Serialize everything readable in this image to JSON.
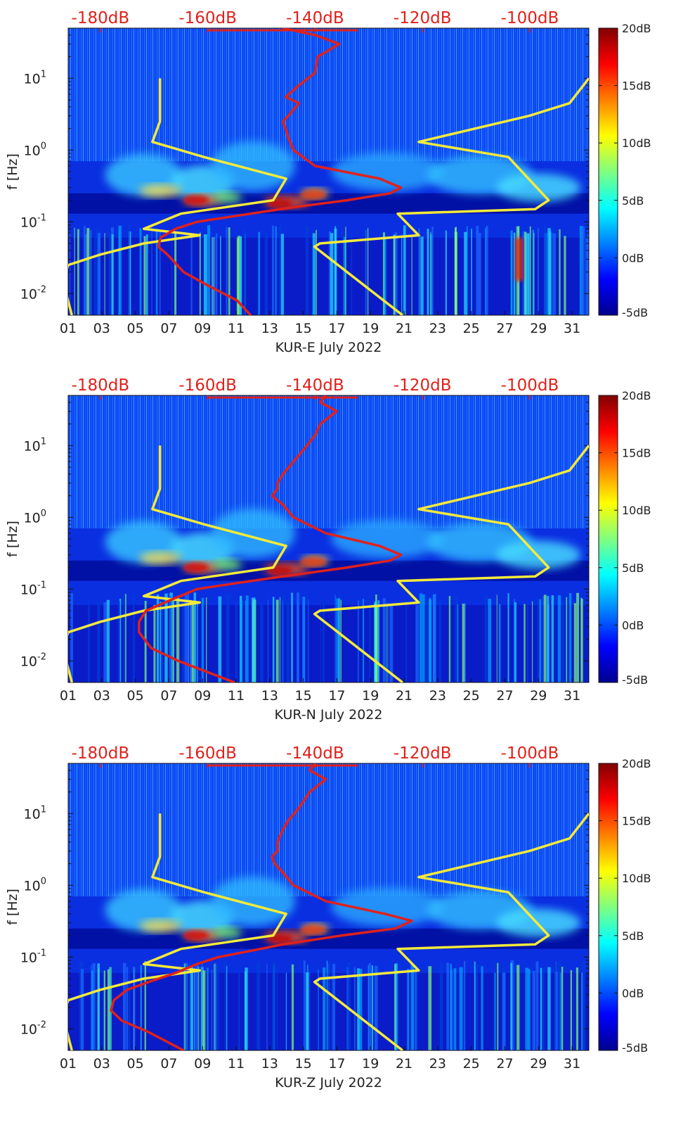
{
  "chart_data": {
    "type": "heatmap",
    "title": "",
    "xlabel_suffix": "July 2022",
    "ylabel": "f [Hz]",
    "x_range_days": [
      1,
      32
    ],
    "x_ticks": [
      "01",
      "03",
      "05",
      "07",
      "09",
      "11",
      "13",
      "15",
      "17",
      "19",
      "21",
      "23",
      "25",
      "27",
      "29",
      "31"
    ],
    "y_range_hz": [
      0.005,
      50
    ],
    "y_scale": "log",
    "y_ticks": [
      {
        "value": 0.01,
        "base": "10",
        "exp": "-2"
      },
      {
        "value": 0.1,
        "base": "10",
        "exp": "-1"
      },
      {
        "value": 1,
        "base": "10",
        "exp": "0"
      },
      {
        "value": 10,
        "base": "10",
        "exp": "1"
      }
    ],
    "top_axis": {
      "range_db": [
        -186,
        -89
      ],
      "ticks": [
        {
          "value": -180,
          "label": "-180dB"
        },
        {
          "value": -160,
          "label": "-160dB"
        },
        {
          "value": -140,
          "label": "-140dB"
        },
        {
          "value": -120,
          "label": "-120dB"
        },
        {
          "value": -100,
          "label": "-100dB"
        }
      ],
      "color": "#e0211b"
    },
    "colorbar": {
      "range_db": [
        -5,
        20
      ],
      "ticks": [
        "20dB",
        "15dB",
        "10dB",
        "5dB",
        "0dB",
        "-5dB"
      ],
      "colormap": "jet"
    },
    "noise_models": {
      "color": "#f5ea3a",
      "low": [
        [
          10,
          -168.9
        ],
        [
          4,
          -168.9
        ],
        [
          2.5,
          -168.9
        ],
        [
          1.3,
          -170.3
        ],
        [
          0.8,
          -160.7
        ],
        [
          0.4,
          -145.4
        ],
        [
          0.2,
          -147.8
        ],
        [
          0.13,
          -165
        ],
        [
          0.08,
          -171.9
        ],
        [
          0.065,
          -161.5
        ],
        [
          0.05,
          -171.9
        ],
        [
          0.035,
          -180
        ],
        [
          0.025,
          -186
        ],
        [
          0.015,
          -187
        ],
        [
          0.005,
          -185.3
        ]
      ],
      "high": [
        [
          10,
          -89
        ],
        [
          4.5,
          -92.6
        ],
        [
          3,
          -100.1
        ],
        [
          1.3,
          -120.7
        ],
        [
          0.8,
          -104
        ],
        [
          0.2,
          -96.5
        ],
        [
          0.15,
          -99
        ],
        [
          0.13,
          -124.6
        ],
        [
          0.065,
          -120.7
        ],
        [
          0.05,
          -139.1
        ],
        [
          0.045,
          -140.1
        ],
        [
          0.005,
          -123.7
        ]
      ]
    },
    "panels": [
      {
        "label": "KUR-E",
        "series": [
          {
            "name": "PSD curve",
            "points": [
              [
                50,
                -146
              ],
              [
                40,
                -140
              ],
              [
                30,
                -135.5
              ],
              [
                20,
                -139.5
              ],
              [
                12,
                -140
              ],
              [
                8,
                -143
              ],
              [
                5.5,
                -145.5
              ],
              [
                4.5,
                -143
              ],
              [
                3,
                -145
              ],
              [
                2.5,
                -146
              ],
              [
                2,
                -145.5
              ],
              [
                1.5,
                -145
              ],
              [
                1,
                -144
              ],
              [
                0.6,
                -140
              ],
              [
                0.4,
                -128
              ],
              [
                0.3,
                -124
              ],
              [
                0.25,
                -126
              ],
              [
                0.2,
                -134
              ],
              [
                0.16,
                -144
              ],
              [
                0.12,
                -155
              ],
              [
                0.1,
                -162
              ],
              [
                0.08,
                -166
              ],
              [
                0.06,
                -168.8
              ],
              [
                0.045,
                -169.2
              ],
              [
                0.035,
                -167.5
              ],
              [
                0.02,
                -164.5
              ],
              [
                0.013,
                -160
              ],
              [
                0.008,
                -154.5
              ],
              [
                0.005,
                -152
              ]
            ]
          }
        ]
      },
      {
        "label": "KUR-N",
        "series": [
          {
            "name": "PSD curve",
            "points": [
              [
                50,
                -138
              ],
              [
                40,
                -139
              ],
              [
                30,
                -136
              ],
              [
                20,
                -139
              ],
              [
                14,
                -140
              ],
              [
                9,
                -142
              ],
              [
                6,
                -144
              ],
              [
                4,
                -146
              ],
              [
                3,
                -147
              ],
              [
                2.5,
                -147
              ],
              [
                2,
                -148
              ],
              [
                1.5,
                -146
              ],
              [
                1,
                -144
              ],
              [
                0.6,
                -138
              ],
              [
                0.4,
                -128
              ],
              [
                0.3,
                -124
              ],
              [
                0.25,
                -126
              ],
              [
                0.2,
                -134
              ],
              [
                0.15,
                -146
              ],
              [
                0.12,
                -155
              ],
              [
                0.1,
                -162
              ],
              [
                0.07,
                -167
              ],
              [
                0.05,
                -171.5
              ],
              [
                0.035,
                -172.8
              ],
              [
                0.025,
                -172.8
              ],
              [
                0.015,
                -170.5
              ],
              [
                0.01,
                -165.5
              ],
              [
                0.005,
                -155
              ]
            ]
          }
        ]
      },
      {
        "label": "KUR-Z",
        "series": [
          {
            "name": "PSD curve",
            "points": [
              [
                50,
                -140
              ],
              [
                40,
                -141
              ],
              [
                30,
                -138
              ],
              [
                20,
                -141
              ],
              [
                12,
                -143
              ],
              [
                8,
                -145
              ],
              [
                6,
                -146
              ],
              [
                4,
                -147
              ],
              [
                3,
                -147
              ],
              [
                2.5,
                -148
              ],
              [
                2,
                -147.5
              ],
              [
                1.5,
                -146
              ],
              [
                1,
                -144
              ],
              [
                0.6,
                -138
              ],
              [
                0.4,
                -127
              ],
              [
                0.32,
                -122
              ],
              [
                0.25,
                -125
              ],
              [
                0.2,
                -135
              ],
              [
                0.15,
                -146
              ],
              [
                0.12,
                -152.5
              ],
              [
                0.1,
                -158
              ],
              [
                0.08,
                -162
              ],
              [
                0.06,
                -166
              ],
              [
                0.045,
                -171
              ],
              [
                0.035,
                -175
              ],
              [
                0.025,
                -177.5
              ],
              [
                0.018,
                -178
              ],
              [
                0.013,
                -176
              ],
              [
                0.009,
                -171
              ],
              [
                0.005,
                -164.5
              ]
            ]
          }
        ]
      }
    ]
  }
}
